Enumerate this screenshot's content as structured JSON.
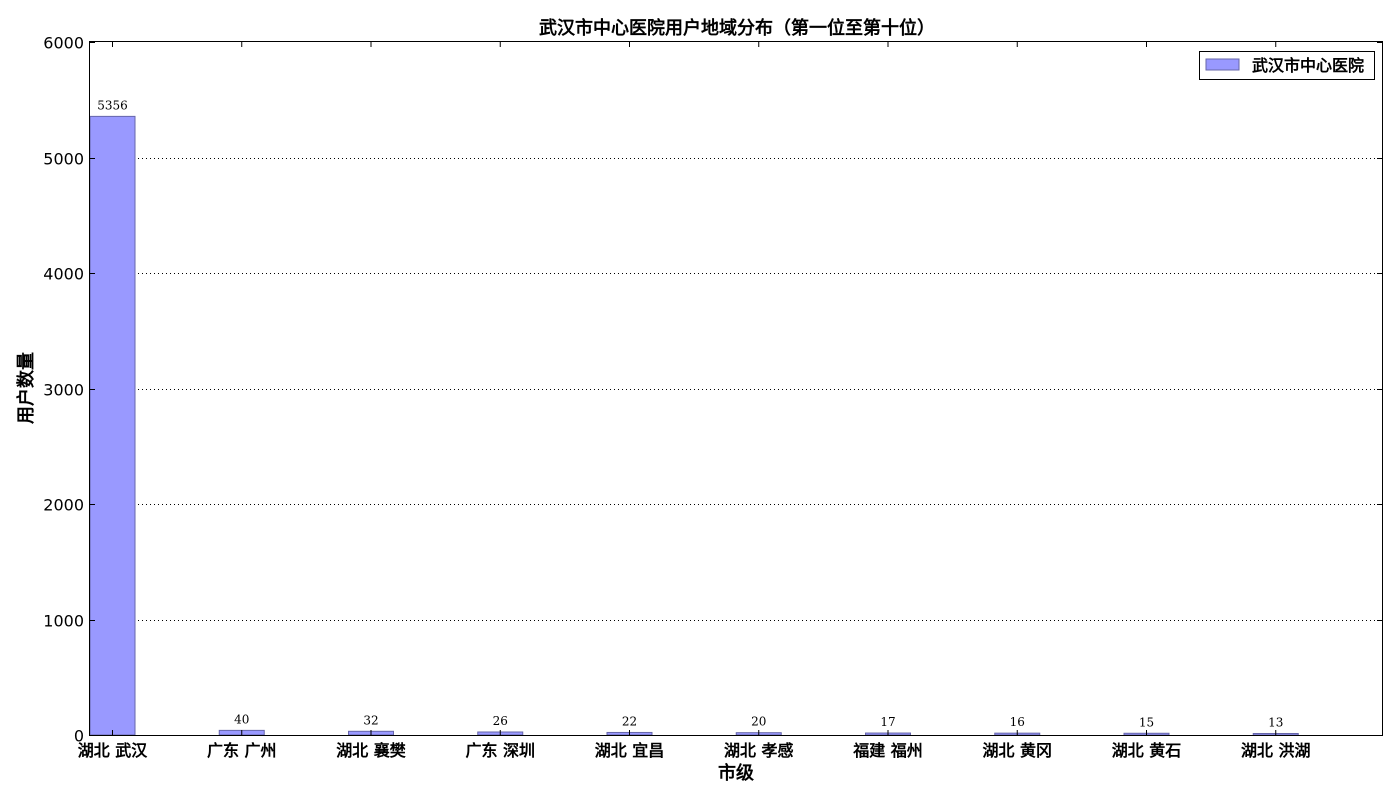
{
  "chart_data": {
    "type": "bar",
    "title": "武汉市中心医院用户地域分布（第一位至第十位）",
    "xlabel": "市级",
    "ylabel": "用户数量",
    "categories": [
      "湖北 武汉",
      "广东 广州",
      "湖北 襄樊",
      "广东 深圳",
      "湖北 宜昌",
      "湖北 孝感",
      "福建 福州",
      "湖北 黄冈",
      "湖北 黄石",
      "湖北 洪湖"
    ],
    "series": [
      {
        "name": "武汉市中心医院",
        "values": [
          5356,
          40,
          32,
          26,
          22,
          20,
          17,
          16,
          15,
          13
        ],
        "color": "#9999ff"
      }
    ],
    "data_labels": [
      "5356",
      "40",
      "32",
      "26",
      "22",
      "20",
      "17",
      "16",
      "15",
      "13"
    ],
    "ylim": [
      0,
      6000
    ],
    "yticks": [
      "0",
      "1000",
      "2000",
      "3000",
      "4000",
      "5000",
      "6000"
    ],
    "grid": "horizontal-dotted",
    "legend_position": "top-right"
  }
}
